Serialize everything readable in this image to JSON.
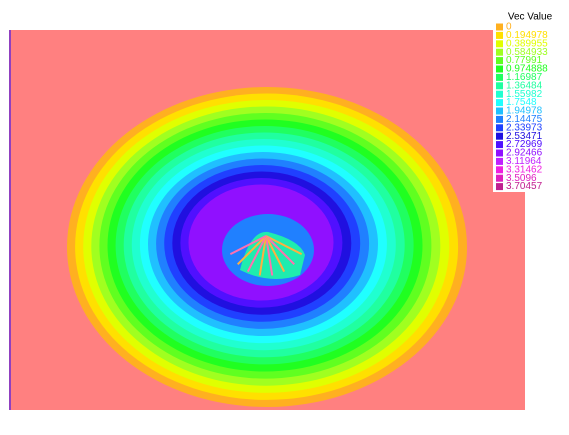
{
  "legend": {
    "title": "Vec Value",
    "levels": [
      {
        "label": 0,
        "color": "#ffb020"
      },
      {
        "label": 0.194978,
        "color": "#ffe000"
      },
      {
        "label": 0.389955,
        "color": "#e0ff00"
      },
      {
        "label": 0.584933,
        "color": "#a0ff20"
      },
      {
        "label": 0.77991,
        "color": "#60ff20"
      },
      {
        "label": 0.974888,
        "color": "#20ff20"
      },
      {
        "label": 1.16987,
        "color": "#20ff60"
      },
      {
        "label": 1.36484,
        "color": "#20ffa0"
      },
      {
        "label": 1.55982,
        "color": "#20ffd0"
      },
      {
        "label": 1.7548,
        "color": "#20ffff"
      },
      {
        "label": 1.94978,
        "color": "#20c0ff"
      },
      {
        "label": 2.14475,
        "color": "#2080ff"
      },
      {
        "label": 2.33973,
        "color": "#2040ff"
      },
      {
        "label": 2.53471,
        "color": "#2010e0"
      },
      {
        "label": 2.72969,
        "color": "#5010ff"
      },
      {
        "label": 2.92466,
        "color": "#9010ff"
      },
      {
        "label": 3.11964,
        "color": "#c020ff"
      },
      {
        "label": 3.31462,
        "color": "#f020e0"
      },
      {
        "label": 3.5096,
        "color": "#e020c0"
      },
      {
        "label": 3.70457,
        "color": "#c02090"
      }
    ]
  }
}
